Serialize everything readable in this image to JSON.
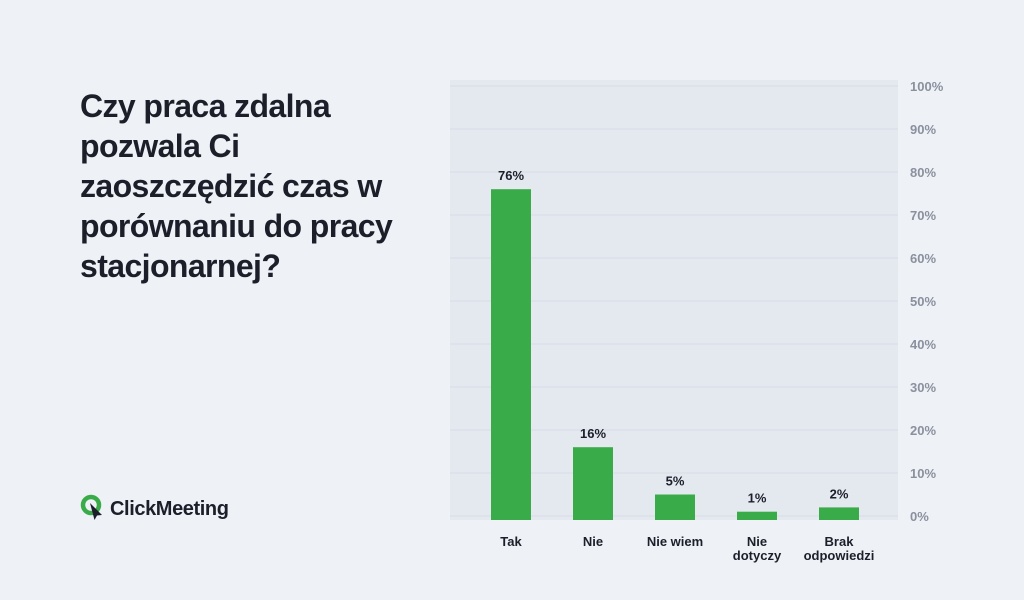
{
  "brand": {
    "name": "ClickMeeting",
    "accent": "#3aab49"
  },
  "chart_data": {
    "type": "bar",
    "title": "Czy praca zdalna pozwala Ci zaoszczędzić czas w porównaniu do pracy stacjonarnej?",
    "categories": [
      "Tak",
      "Nie",
      "Nie wiem",
      "Nie dotyczy",
      "Brak odpowiedzi"
    ],
    "values": [
      76,
      16,
      5,
      1,
      2
    ],
    "data_labels": [
      "76%",
      "16%",
      "5%",
      "1%",
      "2%"
    ],
    "ylim": [
      0,
      100
    ],
    "y_ticks": [
      "0%",
      "10%",
      "20%",
      "30%",
      "40%",
      "50%",
      "60%",
      "70%",
      "80%",
      "90%",
      "100%"
    ],
    "y_axis_position": "right",
    "grid": true,
    "bar_color": "#3aab49",
    "plot_background": "#e4e8ef"
  }
}
